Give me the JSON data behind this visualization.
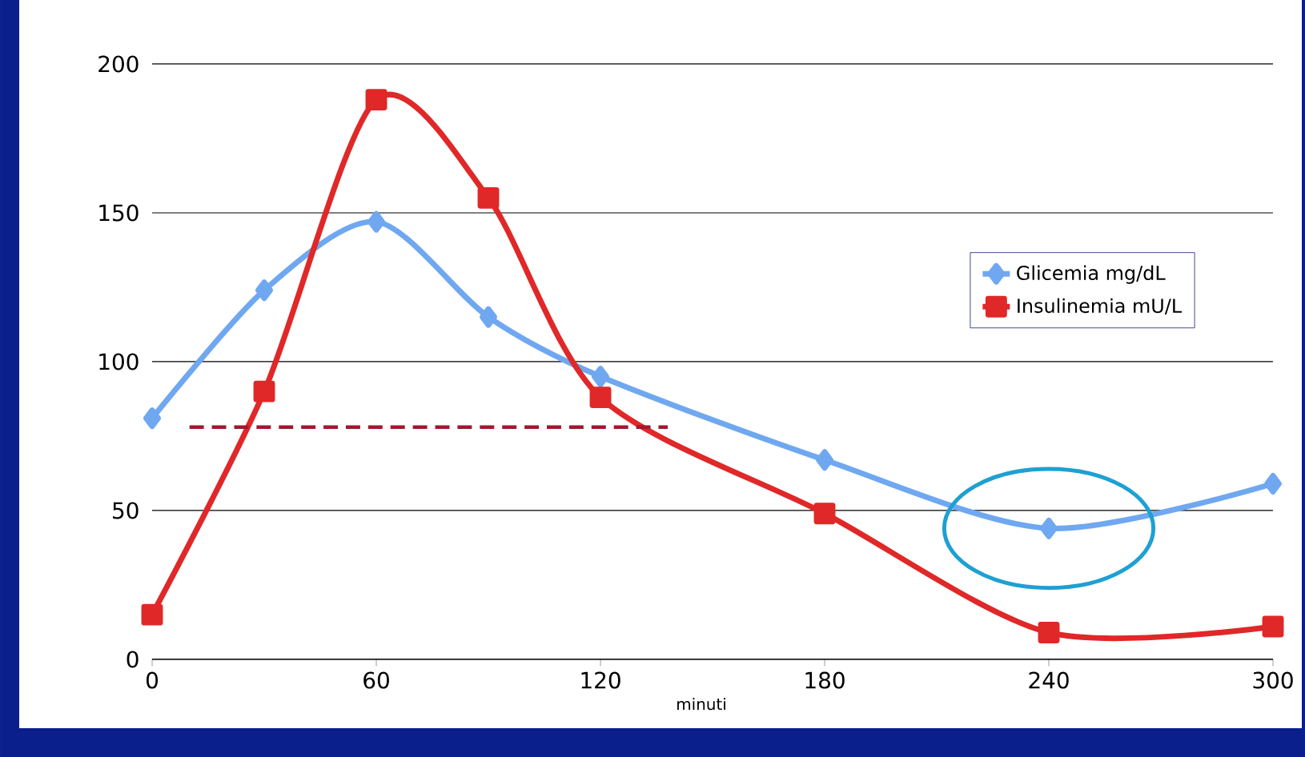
{
  "chart_data": {
    "type": "line",
    "xlabel": "minuti",
    "x": [
      0,
      30,
      60,
      90,
      120,
      180,
      240,
      300
    ],
    "xlim": [
      0,
      300
    ],
    "xticks": [
      0,
      60,
      120,
      180,
      240,
      300
    ],
    "ylim": [
      0,
      200
    ],
    "yticks": [
      0,
      50,
      100,
      150,
      200
    ],
    "grid": "y",
    "legend": "right",
    "series": [
      {
        "name": "Glicemia mg/dL",
        "color": "#6fa8f0",
        "marker": "diamond",
        "values": [
          81,
          124,
          147,
          115,
          95,
          67,
          44,
          59
        ]
      },
      {
        "name": "Insulinemia mU/L",
        "color": "#e02828",
        "marker": "square",
        "values": [
          15,
          90,
          188,
          155,
          88,
          49,
          9,
          11
        ]
      },
      {
        "color": "#a01830",
        "marker": "none",
        "line_style": "dashed",
        "x": [
          10,
          138
        ],
        "values": [
          78,
          78
        ]
      }
    ]
  }
}
